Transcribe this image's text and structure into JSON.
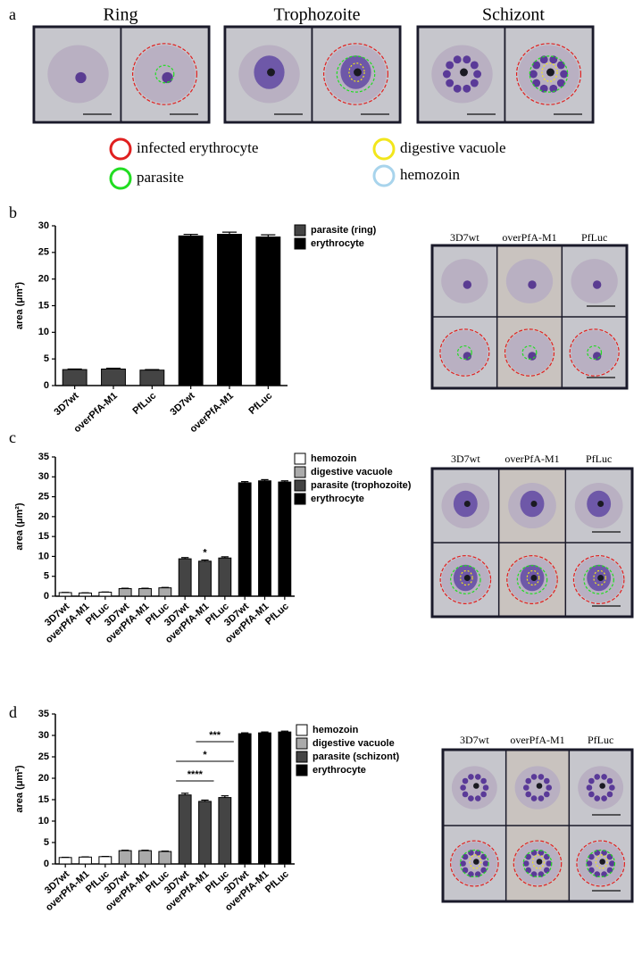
{
  "panel_labels": [
    "a",
    "b",
    "c",
    "d"
  ],
  "stages": [
    "Ring",
    "Trophozoite",
    "Schizont"
  ],
  "outline_legend": [
    {
      "label": "infected erythrocyte",
      "color": "#e02020"
    },
    {
      "label": "parasite",
      "color": "#22dd22"
    },
    {
      "label": "digestive vacuole",
      "color": "#f2e61c"
    },
    {
      "label": "hemozoin",
      "color": "#a8d4ec"
    }
  ],
  "micrographs": [
    {
      "headers": [
        "3D7wt",
        "overPfA-M1",
        "PfLuc"
      ]
    },
    {
      "headers": [
        "3D7wt",
        "overPfA-M1",
        "PfLuc"
      ]
    },
    {
      "headers": [
        "3D7wt",
        "overPfA-M1",
        "PfLuc"
      ]
    }
  ],
  "chart_data": [
    {
      "type": "bar",
      "y_label": "area (μm²)",
      "categories": [
        "3D7wt",
        "overPfA-M1",
        "PfLuc",
        "3D7wt",
        "overPfA-M1",
        "PfLuc"
      ],
      "series": [
        {
          "name": "parasite (ring)",
          "color": "#444444",
          "values": [
            3.0,
            3.1,
            2.9,
            null,
            null,
            null
          ],
          "errors": [
            0.1,
            0.15,
            0.1,
            null,
            null,
            null
          ]
        },
        {
          "name": "erythrocyte",
          "color": "#000000",
          "values": [
            null,
            null,
            null,
            28.1,
            28.4,
            27.9
          ],
          "errors": [
            null,
            null,
            null,
            0.3,
            0.4,
            0.4
          ]
        }
      ],
      "ylim": [
        0,
        30
      ],
      "yticks": [
        0,
        5,
        10,
        15,
        20,
        25,
        30
      ]
    },
    {
      "type": "bar",
      "y_label": "area (μm²)",
      "categories": [
        "3D7wt",
        "overPfA-M1",
        "PfLuc",
        "3D7wt",
        "overPfA-M1",
        "PfLuc",
        "3D7wt",
        "overPfA-M1",
        "PfLuc",
        "3D7wt",
        "overPfA-M1",
        "PfLuc"
      ],
      "series": [
        {
          "name": "hemozoin",
          "color": "#ffffff",
          "values": [
            0.9,
            0.8,
            1.0,
            null,
            null,
            null,
            null,
            null,
            null,
            null,
            null,
            null
          ],
          "errors": [
            0.05,
            0.05,
            0.05,
            null,
            null,
            null,
            null,
            null,
            null,
            null,
            null,
            null
          ]
        },
        {
          "name": "digestive vacuole",
          "color": "#aaaaaa",
          "values": [
            null,
            null,
            null,
            1.9,
            1.9,
            2.1,
            null,
            null,
            null,
            null,
            null,
            null
          ],
          "errors": [
            null,
            null,
            null,
            0.1,
            0.1,
            0.1,
            null,
            null,
            null,
            null,
            null,
            null
          ]
        },
        {
          "name": "parasite (trophozoite)",
          "color": "#444444",
          "values": [
            null,
            null,
            null,
            null,
            null,
            null,
            9.4,
            8.8,
            9.6,
            null,
            null,
            null
          ],
          "errors": [
            null,
            null,
            null,
            null,
            null,
            null,
            0.3,
            0.3,
            0.3,
            null,
            null,
            null
          ]
        },
        {
          "name": "erythrocyte",
          "color": "#000000",
          "values": [
            null,
            null,
            null,
            null,
            null,
            null,
            null,
            null,
            null,
            28.5,
            29.0,
            28.7
          ],
          "errors": [
            null,
            null,
            null,
            null,
            null,
            null,
            null,
            null,
            null,
            0.3,
            0.3,
            0.3
          ]
        }
      ],
      "annotations": [
        "*"
      ],
      "ylim": [
        0,
        35
      ],
      "yticks": [
        0,
        5,
        10,
        15,
        20,
        25,
        30,
        35
      ]
    },
    {
      "type": "bar",
      "y_label": "area (μm²)",
      "categories": [
        "3D7wt",
        "overPfA-M1",
        "PfLuc",
        "3D7wt",
        "overPfA-M1",
        "PfLuc",
        "3D7wt",
        "overPfA-M1",
        "PfLuc",
        "3D7wt",
        "overPfA-M1",
        "PfLuc"
      ],
      "series": [
        {
          "name": "hemozoin",
          "color": "#ffffff",
          "values": [
            1.5,
            1.6,
            1.7,
            null,
            null,
            null,
            null,
            null,
            null,
            null,
            null,
            null
          ],
          "errors": [
            0.05,
            0.05,
            0.05,
            null,
            null,
            null,
            null,
            null,
            null,
            null,
            null,
            null
          ]
        },
        {
          "name": "digestive vacuole",
          "color": "#aaaaaa",
          "values": [
            null,
            null,
            null,
            3.1,
            3.1,
            2.9,
            null,
            null,
            null,
            null,
            null,
            null
          ],
          "errors": [
            null,
            null,
            null,
            0.1,
            0.1,
            0.1,
            null,
            null,
            null,
            null,
            null,
            null
          ]
        },
        {
          "name": "parasite (schizont)",
          "color": "#444444",
          "values": [
            null,
            null,
            null,
            null,
            null,
            null,
            16.1,
            14.6,
            15.5,
            null,
            null,
            null
          ],
          "errors": [
            null,
            null,
            null,
            null,
            null,
            null,
            0.4,
            0.3,
            0.4,
            null,
            null,
            null
          ]
        },
        {
          "name": "erythrocyte",
          "color": "#000000",
          "values": [
            null,
            null,
            null,
            null,
            null,
            null,
            null,
            null,
            null,
            30.4,
            30.6,
            30.8
          ],
          "errors": [
            null,
            null,
            null,
            null,
            null,
            null,
            null,
            null,
            null,
            0.2,
            0.2,
            0.2
          ]
        }
      ],
      "annotations": [
        "****",
        "*",
        "***"
      ],
      "ylim": [
        0,
        35
      ],
      "yticks": [
        0,
        5,
        10,
        15,
        20,
        25,
        30,
        35
      ]
    }
  ]
}
